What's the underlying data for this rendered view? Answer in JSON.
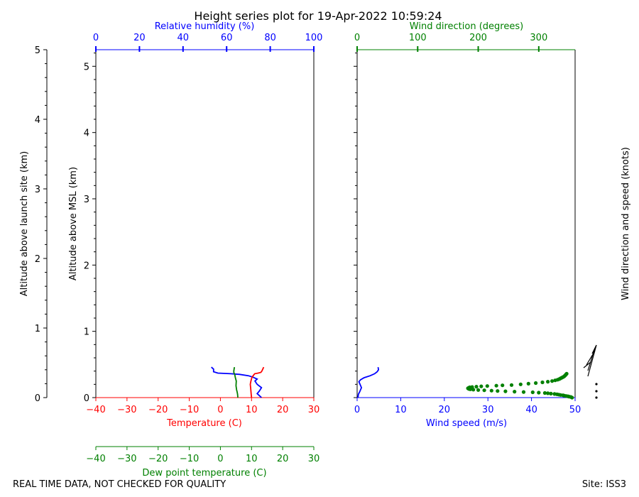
{
  "title": "Height series plot for 19-Apr-2022 10:59:24",
  "footer": {
    "left": "REAL TIME DATA, NOT CHECKED FOR QUALITY",
    "right": "Site: ISS3"
  },
  "colors": {
    "temperature": "#ff0000",
    "dewpoint": "#008000",
    "humidity": "#0000ff",
    "wind_speed": "#0000ff",
    "wind_direction": "#008000",
    "axis": "#000000"
  },
  "chart_data": [
    {
      "type": "line",
      "name": "thermo-panel",
      "left_axis": {
        "label": "Altitude above launch site (km)",
        "range": [
          0,
          5
        ],
        "ticks": [
          "0",
          "1",
          "2",
          "3",
          "4",
          "5"
        ]
      },
      "inner_axis": {
        "label": "Altitude above MSL (km)",
        "range": [
          0,
          5.25
        ],
        "ticks": [
          "0",
          "1",
          "2",
          "3",
          "4",
          "5"
        ]
      },
      "bottom_axis": {
        "label": "Temperature (C)",
        "range": [
          -40,
          30
        ],
        "ticks": [
          "−40",
          "−30",
          "−20",
          "−10",
          "0",
          "10",
          "20",
          "30"
        ]
      },
      "dew_axis": {
        "label": "Dew point temperature (C)",
        "range": [
          -40,
          30
        ],
        "ticks": [
          "−40",
          "−30",
          "−20",
          "−10",
          "0",
          "10",
          "20",
          "30"
        ]
      },
      "top_axis": {
        "label": "Relative humidity (%)",
        "range": [
          0,
          100
        ],
        "ticks": [
          "0",
          "20",
          "40",
          "60",
          "80",
          "100"
        ]
      },
      "series": [
        {
          "name": "Temperature (C)",
          "color": "#ff0000",
          "x": [
            10,
            9.9,
            9.8,
            9.7,
            9.6,
            9.8,
            10.1,
            10.5,
            11.0,
            12.1,
            13.0,
            13.3,
            13.6,
            13.9
          ],
          "y": [
            0.0,
            0.05,
            0.1,
            0.15,
            0.2,
            0.25,
            0.3,
            0.33,
            0.36,
            0.37,
            0.38,
            0.4,
            0.43,
            0.46
          ]
        },
        {
          "name": "Dew point temperature (C)",
          "color": "#008000",
          "x": [
            5.6,
            5.5,
            5.4,
            5.2,
            5.0,
            5.1,
            4.8,
            4.6,
            4.4,
            4.3,
            4.3,
            4.4,
            4.5
          ],
          "y": [
            0.0,
            0.05,
            0.08,
            0.12,
            0.18,
            0.25,
            0.3,
            0.35,
            0.37,
            0.38,
            0.4,
            0.43,
            0.46
          ]
        },
        {
          "name": "Relative humidity (%)",
          "color": "#0000ff",
          "x": [
            76,
            75,
            74,
            75,
            76,
            74,
            73,
            74,
            72,
            70,
            66,
            62,
            56,
            54,
            54,
            53
          ],
          "y": [
            0.0,
            0.03,
            0.06,
            0.1,
            0.15,
            0.2,
            0.25,
            0.28,
            0.31,
            0.33,
            0.35,
            0.36,
            0.37,
            0.39,
            0.43,
            0.46
          ]
        }
      ]
    },
    {
      "type": "scatter",
      "name": "wind-panel",
      "bottom_axis": {
        "label": "Wind speed (m/s)",
        "range": [
          0,
          50
        ],
        "ticks": [
          "0",
          "10",
          "20",
          "30",
          "40",
          "50"
        ]
      },
      "top_axis": {
        "label": "Wind direction (degrees)",
        "range": [
          0,
          360
        ],
        "ticks": [
          "0",
          "100",
          "200",
          "300"
        ]
      },
      "y_range": [
        0,
        5.25
      ],
      "right_label": "Wind direction and speed (knots)",
      "speed": {
        "name": "Wind speed (m/s)",
        "color": "#0000ff",
        "x": [
          0.2,
          0.3,
          0.6,
          0.8,
          1.0,
          0.8,
          0.6,
          0.4,
          0.8,
          1.6,
          3.0,
          4.0,
          4.6,
          4.9,
          4.8
        ],
        "y": [
          0.0,
          0.05,
          0.09,
          0.12,
          0.15,
          0.18,
          0.21,
          0.24,
          0.27,
          0.3,
          0.33,
          0.36,
          0.39,
          0.42,
          0.46
        ]
      },
      "direction": {
        "name": "Wind direction (degrees)",
        "color": "#008000",
        "x": [
          355,
          353,
          350,
          348,
          345,
          342,
          340,
          336,
          333,
          330,
          326,
          320,
          315,
          310,
          300,
          290,
          275,
          260,
          245,
          232,
          222,
          210,
          200,
          192,
          187,
          185,
          184,
          183,
          184,
          185,
          186,
          190,
          197,
          205,
          215,
          230,
          240,
          255,
          270,
          283,
          295,
          306,
          315,
          322,
          327,
          331,
          334,
          336,
          338,
          340,
          342,
          343,
          344,
          345,
          346
        ],
        "y": [
          0.0,
          0.01,
          0.015,
          0.02,
          0.025,
          0.03,
          0.035,
          0.04,
          0.045,
          0.05,
          0.055,
          0.06,
          0.065,
          0.07,
          0.075,
          0.08,
          0.085,
          0.09,
          0.095,
          0.1,
          0.105,
          0.11,
          0.115,
          0.12,
          0.125,
          0.13,
          0.135,
          0.14,
          0.145,
          0.15,
          0.155,
          0.16,
          0.165,
          0.17,
          0.175,
          0.18,
          0.185,
          0.19,
          0.2,
          0.21,
          0.22,
          0.23,
          0.24,
          0.25,
          0.26,
          0.27,
          0.28,
          0.29,
          0.3,
          0.31,
          0.32,
          0.33,
          0.34,
          0.35,
          0.36
        ]
      }
    }
  ]
}
